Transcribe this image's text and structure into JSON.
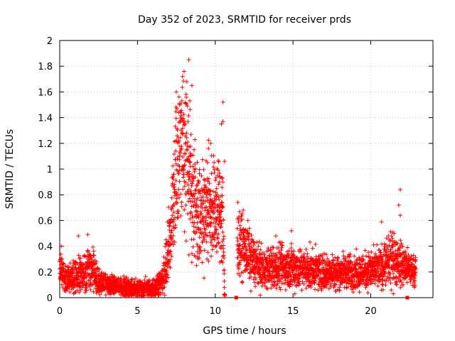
{
  "chart_data": {
    "type": "scatter",
    "title": "Day 352 of 2023, SRMTID for receiver prds",
    "xlabel": "GPS time / hours",
    "ylabel": "SRMTID / TECUs",
    "xlim": [
      0,
      24
    ],
    "ylim": [
      0,
      2
    ],
    "x_ticks": [
      0,
      5,
      10,
      15,
      20
    ],
    "x_tick_labels": [
      "0",
      "5",
      "10",
      "15",
      "20"
    ],
    "y_ticks": [
      0,
      0.2,
      0.4,
      0.6,
      0.8,
      1,
      1.2,
      1.4,
      1.6,
      1.8,
      2
    ],
    "y_tick_labels": [
      "0",
      "0.2",
      "0.4",
      "0.6",
      "0.8",
      "1",
      "1.2",
      "1.4",
      "1.6",
      "1.8",
      "2"
    ],
    "grid": true,
    "marker": "+",
    "series_color": "#ff0000",
    "outage_markers": [
      11.35,
      22.35
    ],
    "series": [
      {
        "name": "prds",
        "profile": [
          {
            "t": 0.0,
            "mean": 0.22,
            "spread": 0.15
          },
          {
            "t": 0.5,
            "mean": 0.15,
            "spread": 0.1
          },
          {
            "t": 1.5,
            "mean": 0.18,
            "spread": 0.15
          },
          {
            "t": 2.0,
            "mean": 0.24,
            "spread": 0.18
          },
          {
            "t": 2.5,
            "mean": 0.13,
            "spread": 0.1
          },
          {
            "t": 3.0,
            "mean": 0.1,
            "spread": 0.08
          },
          {
            "t": 4.0,
            "mean": 0.08,
            "spread": 0.07
          },
          {
            "t": 5.0,
            "mean": 0.07,
            "spread": 0.07
          },
          {
            "t": 6.0,
            "mean": 0.07,
            "spread": 0.07
          },
          {
            "t": 6.6,
            "mean": 0.12,
            "spread": 0.1
          },
          {
            "t": 7.0,
            "mean": 0.35,
            "spread": 0.25
          },
          {
            "t": 7.4,
            "mean": 0.9,
            "spread": 0.5
          },
          {
            "t": 7.8,
            "mean": 1.2,
            "spread": 0.55
          },
          {
            "t": 8.2,
            "mean": 1.1,
            "spread": 0.6
          },
          {
            "t": 8.6,
            "mean": 0.75,
            "spread": 0.45
          },
          {
            "t": 9.0,
            "mean": 0.65,
            "spread": 0.4
          },
          {
            "t": 9.5,
            "mean": 0.7,
            "spread": 0.4
          },
          {
            "t": 10.0,
            "mean": 0.7,
            "spread": 0.4
          },
          {
            "t": 10.5,
            "mean": 0.65,
            "spread": 0.45
          },
          {
            "t": 10.6,
            "mean": 0.0,
            "spread": 0.0
          },
          {
            "t": 11.5,
            "mean": 0.45,
            "spread": 0.25
          },
          {
            "t": 12.0,
            "mean": 0.35,
            "spread": 0.2
          },
          {
            "t": 13.0,
            "mean": 0.22,
            "spread": 0.15
          },
          {
            "t": 15.0,
            "mean": 0.24,
            "spread": 0.17
          },
          {
            "t": 17.0,
            "mean": 0.2,
            "spread": 0.13
          },
          {
            "t": 19.0,
            "mean": 0.2,
            "spread": 0.13
          },
          {
            "t": 20.5,
            "mean": 0.22,
            "spread": 0.15
          },
          {
            "t": 21.5,
            "mean": 0.3,
            "spread": 0.2
          },
          {
            "t": 22.5,
            "mean": 0.22,
            "spread": 0.12
          },
          {
            "t": 22.9,
            "mean": 0.2,
            "spread": 0.1
          }
        ],
        "outliers": [
          {
            "x": 8.3,
            "y": 1.85
          },
          {
            "x": 8.0,
            "y": 1.76
          },
          {
            "x": 7.9,
            "y": 1.72
          },
          {
            "x": 7.5,
            "y": 1.6
          },
          {
            "x": 8.5,
            "y": 1.65
          },
          {
            "x": 7.7,
            "y": 1.5
          },
          {
            "x": 10.5,
            "y": 1.52
          },
          {
            "x": 10.5,
            "y": 1.37
          },
          {
            "x": 10.4,
            "y": 1.35
          },
          {
            "x": 10.6,
            "y": 1.06
          },
          {
            "x": 9.7,
            "y": 1.2
          },
          {
            "x": 9.5,
            "y": 1.05
          },
          {
            "x": 21.9,
            "y": 0.84
          },
          {
            "x": 21.9,
            "y": 0.64
          },
          {
            "x": 21.8,
            "y": 0.72
          },
          {
            "x": 20.7,
            "y": 0.59
          },
          {
            "x": 21.5,
            "y": 0.5
          },
          {
            "x": 1.8,
            "y": 0.49
          },
          {
            "x": 1.2,
            "y": 0.48
          },
          {
            "x": 0.1,
            "y": 0.4
          },
          {
            "x": 14.9,
            "y": 0.52
          },
          {
            "x": 13.9,
            "y": 0.48
          },
          {
            "x": 11.8,
            "y": 0.68
          },
          {
            "x": 12.1,
            "y": 0.6
          }
        ]
      }
    ]
  }
}
